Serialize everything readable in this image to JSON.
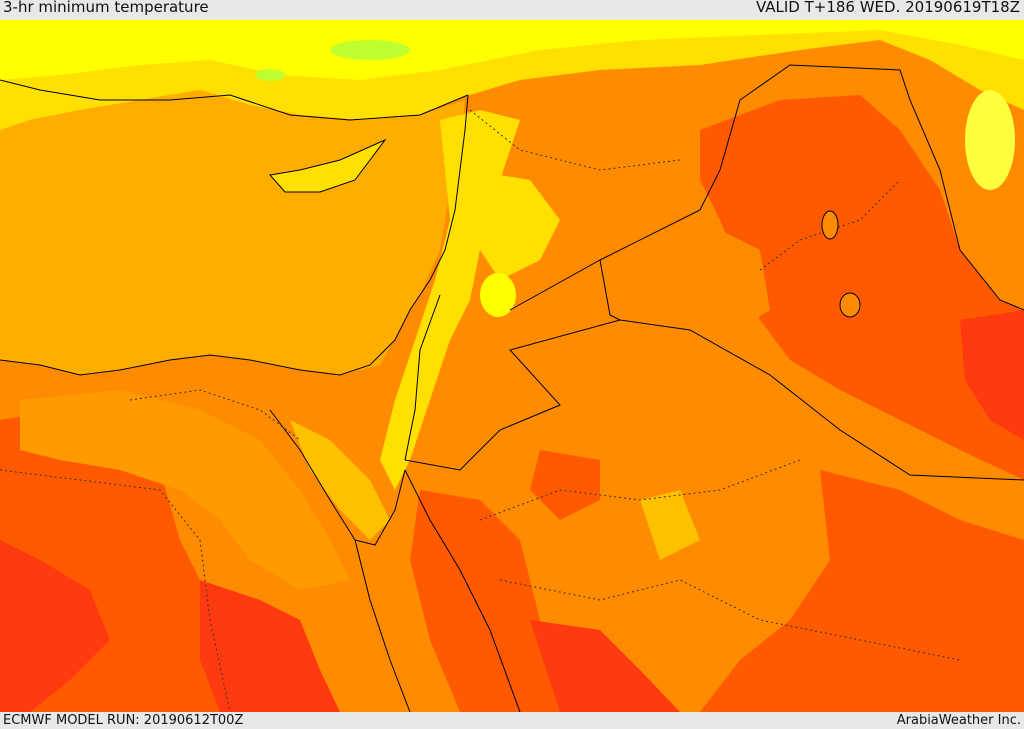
{
  "header": {
    "title": "3-hr minimum temperature",
    "valid_time": "VALID T+186 WED. 20190619T18Z"
  },
  "footer": {
    "model_run": "ECMWF MODEL RUN: 20190612T00Z",
    "credit": "ArabiaWeather Inc."
  },
  "colors": {
    "cool_yellow": "#ffff00",
    "pale_yellow": "#ffe000",
    "light_orange": "#ffc000",
    "sea_orange": "#ffae00",
    "orange": "#ff9a00",
    "deep_orange": "#ff8000",
    "red_orange": "#ff5a00",
    "red": "#ff3a10",
    "green_patch": "#bfff30"
  }
}
